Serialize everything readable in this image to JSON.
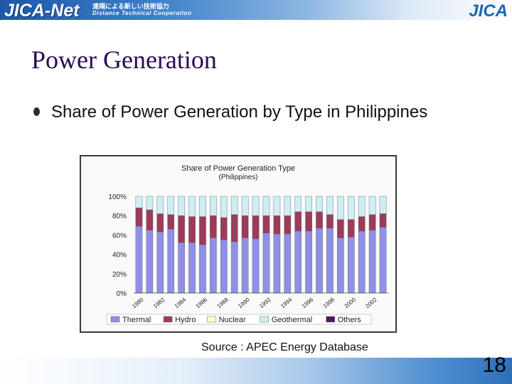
{
  "header": {
    "logo": "JICA-Net",
    "logo_jp": "遠隔による新しい技術協力",
    "logo_sub": "Distance Technical Cooperation",
    "brand_mark": "JICA"
  },
  "slide": {
    "title": "Power Generation",
    "bullet": "Share of Power Generation by Type in Philippines",
    "source": "Source : APEC Energy Database",
    "page_number": "18"
  },
  "colors": {
    "thermal": "#8f8fe6",
    "hydro": "#9e3a5a",
    "nuclear": "#ffffcc",
    "geothermal": "#cceef4",
    "others": "#4a1860",
    "title": "#2a0b56"
  },
  "chart_data": {
    "type": "bar",
    "stacked": true,
    "title": "Share of Power Generation Type",
    "subtitle": "(Philippines)",
    "x": [
      1980,
      1981,
      1982,
      1983,
      1984,
      1985,
      1986,
      1987,
      1988,
      1989,
      1990,
      1991,
      1992,
      1993,
      1994,
      1995,
      1996,
      1997,
      1998,
      1999,
      2000,
      2001,
      2002,
      2003
    ],
    "x_tick_labels": [
      "1980",
      "",
      "1982",
      "",
      "1984",
      "",
      "1986",
      "",
      "1988",
      "",
      "1990",
      "",
      "1992",
      "",
      "1994",
      "",
      "1996",
      "",
      "1998",
      "",
      "2000",
      "",
      "2002",
      ""
    ],
    "y_ticks": [
      "0%",
      "20%",
      "40%",
      "60%",
      "80%",
      "100%"
    ],
    "ylim": [
      0,
      100
    ],
    "series": [
      {
        "name": "Thermal",
        "values": [
          69,
          65,
          63,
          66,
          52,
          52,
          50,
          57,
          55,
          53,
          57,
          56,
          62,
          61,
          61,
          64,
          64,
          67,
          67,
          57,
          58,
          64,
          65,
          68
        ]
      },
      {
        "name": "Hydro",
        "values": [
          19,
          21,
          19,
          15,
          28,
          27,
          29,
          23,
          23,
          28,
          23,
          24,
          18,
          19,
          19,
          20,
          20,
          17,
          14,
          19,
          18,
          15,
          16,
          14
        ]
      },
      {
        "name": "Nuclear",
        "values": [
          0,
          0,
          0,
          0,
          0,
          0,
          0,
          0,
          0,
          0,
          0,
          0,
          0,
          0,
          0,
          0,
          0,
          0,
          0,
          0,
          0,
          0,
          0,
          0
        ]
      },
      {
        "name": "Geothermal",
        "values": [
          12,
          14,
          18,
          19,
          20,
          21,
          21,
          20,
          22,
          19,
          20,
          20,
          20,
          20,
          20,
          16,
          16,
          16,
          19,
          24,
          24,
          21,
          19,
          18
        ]
      },
      {
        "name": "Others",
        "values": [
          0,
          0,
          0,
          0,
          0,
          0,
          0,
          0,
          0,
          0,
          0,
          0,
          0,
          0,
          0,
          0,
          0,
          0,
          0,
          0,
          0,
          0,
          0,
          0
        ]
      }
    ],
    "legend_position": "bottom",
    "grid": false
  }
}
